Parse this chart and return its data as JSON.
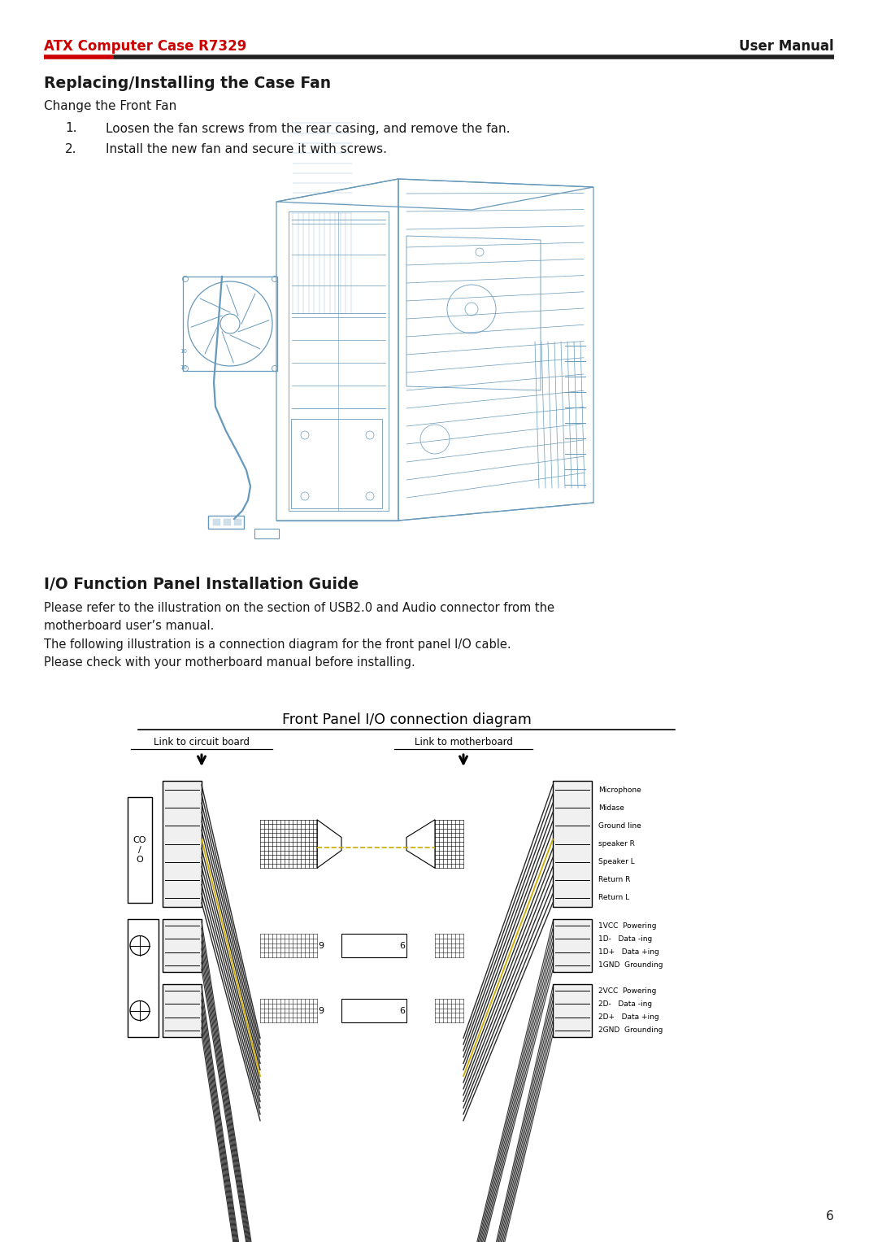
{
  "page_width": 10.8,
  "page_height": 15.27,
  "bg_color": "#ffffff",
  "header_brand": "ATX Computer Case ",
  "header_model": "R7329",
  "header_manual": "User Manual",
  "header_red": "#cc0000",
  "header_black": "#1a1a1a",
  "section1_title": "Replacing/Installing the Case Fan",
  "section1_sub": "Change the Front Fan",
  "step1_num": "1.",
  "step1_txt": "Loosen the fan screws from the rear casing, and remove the fan.",
  "step2_num": "2.",
  "step2_txt": "Install the new fan and secure it with screws.",
  "section2_title": "I/O Function Panel Installation Guide",
  "para1a": "Please refer to the illustration on the section of USB2.0 and Audio connector from the",
  "para1b": "motherboard user’s manual.",
  "para2": "The following illustration is a connection diagram for the front panel I/O cable.",
  "para3": "Please check with your motherboard manual before installing.",
  "diag_title": "Front Panel I/O connection diagram",
  "link_left": "Link to circuit board",
  "link_right": "Link to motherboard",
  "audio_right_labels": [
    "Microphone",
    "Midase",
    "Ground line",
    "speaker R",
    "Speaker L",
    "Return R",
    "Return L"
  ],
  "usb1_right_labels": [
    "1VCC  Powering",
    "1D-   Data -ing",
    "1D+   Data +ing",
    "1GND  Grounding"
  ],
  "usb2_right_labels": [
    "2VCC  Powering",
    "2D-   Data -ing",
    "2D+   Data +ing",
    "2GND  Grounding"
  ],
  "page_num": "6",
  "case_color": "#6699bb",
  "diag_color": "#000000",
  "yellow_wire": "#ccaa00"
}
